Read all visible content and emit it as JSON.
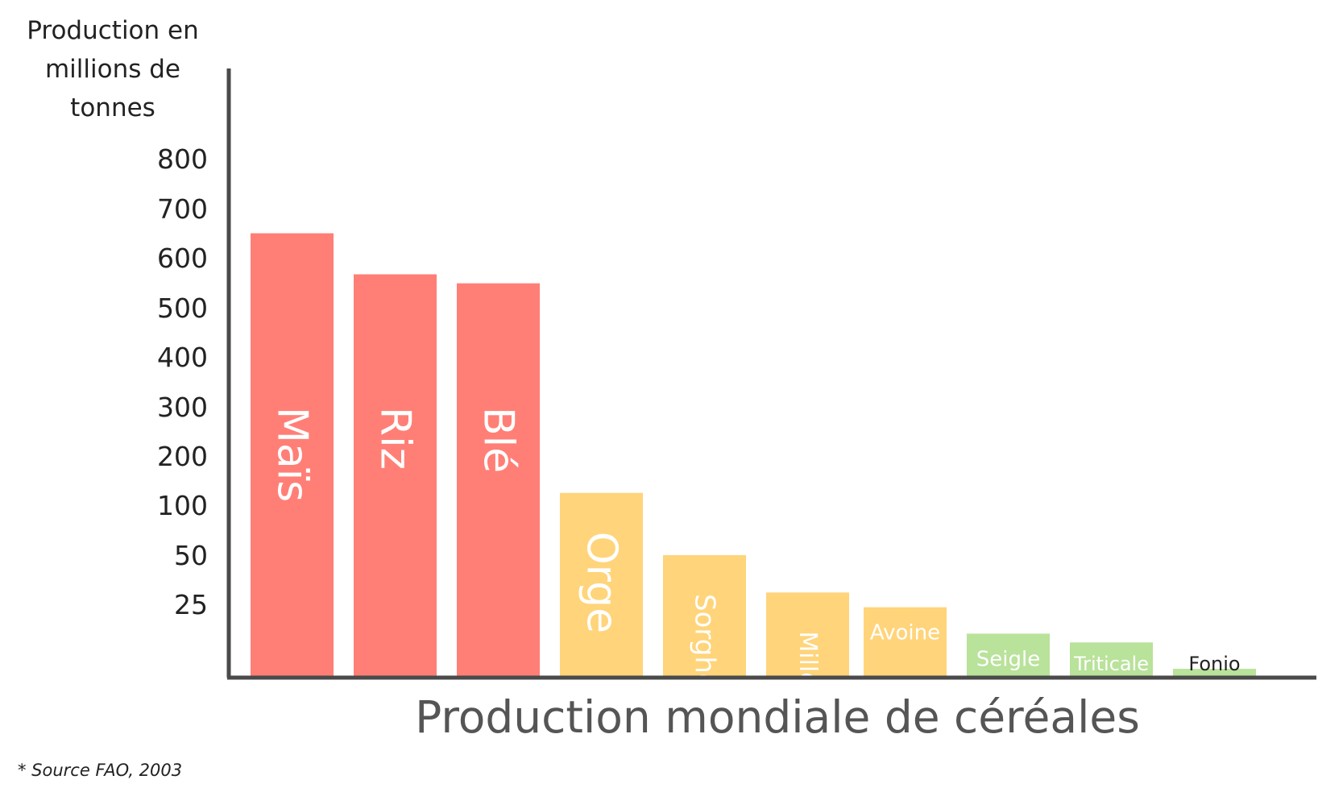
{
  "chart_data": {
    "type": "bar",
    "title": "Production mondiale de céréales",
    "ylabel": "Production en millions de tonnes",
    "xlabel": "",
    "yticks": [
      "800",
      "700",
      "600",
      "500",
      "400",
      "300",
      "200",
      "100",
      "50",
      "25"
    ],
    "ytick_values": [
      800,
      700,
      600,
      500,
      400,
      300,
      200,
      100,
      50,
      25
    ],
    "categories": [
      "Maïs",
      "Riz",
      "Blé",
      "Orge",
      "Sorgho",
      "Millet",
      "Avoine",
      "Seigle",
      "Triticale",
      "Fonio"
    ],
    "values": [
      650,
      567,
      549,
      125,
      50,
      31,
      24,
      15,
      12,
      3
    ],
    "colors": [
      "#FF7F76",
      "#FF7F76",
      "#FF7F76",
      "#FFD47A",
      "#FFD47A",
      "#FFD47A",
      "#FFD47A",
      "#B9E29A",
      "#B9E29A",
      "#B9E29A"
    ],
    "label_colors": [
      "#ffffff",
      "#ffffff",
      "#ffffff",
      "#ffffff",
      "#ffffff",
      "#ffffff",
      "#ffffff",
      "#ffffff",
      "#ffffff",
      "#222222"
    ],
    "grid": false,
    "legend": "none"
  },
  "footnote": "* Source FAO, 2003"
}
